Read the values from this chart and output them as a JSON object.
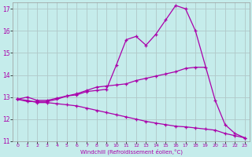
{
  "xlabel": "Windchill (Refroidissement éolien,°C)",
  "bg_color": "#c5eceb",
  "line_color": "#aa00aa",
  "grid_color": "#b0c8c8",
  "ylim": [
    11,
    17.3
  ],
  "xlim": [
    -0.5,
    23.5
  ],
  "yticks": [
    11,
    12,
    13,
    14,
    15,
    16,
    17
  ],
  "xticks": [
    0,
    1,
    2,
    3,
    4,
    5,
    6,
    7,
    8,
    9,
    10,
    11,
    12,
    13,
    14,
    15,
    16,
    17,
    18,
    19,
    20,
    21,
    22,
    23
  ],
  "line_upper_x": [
    0,
    1,
    2,
    3,
    4,
    5,
    6,
    7,
    8,
    9,
    10,
    11,
    12,
    13,
    14,
    15,
    16,
    17,
    18,
    20,
    21,
    22,
    23
  ],
  "line_upper_y": [
    12.9,
    12.8,
    12.8,
    12.8,
    12.9,
    13.05,
    13.1,
    13.25,
    13.3,
    13.35,
    14.45,
    15.6,
    15.75,
    15.35,
    15.85,
    16.5,
    17.15,
    17.0,
    16.0,
    12.85,
    11.75,
    11.35,
    11.15
  ],
  "line_mid_x": [
    0,
    1,
    2,
    3,
    4,
    5,
    6,
    7,
    8,
    9,
    10,
    11,
    12,
    13,
    14,
    15,
    16,
    17,
    18,
    19
  ],
  "line_mid_y": [
    12.9,
    13.0,
    12.85,
    12.85,
    12.95,
    13.05,
    13.15,
    13.3,
    13.45,
    13.5,
    13.55,
    13.6,
    13.75,
    13.85,
    13.95,
    14.05,
    14.15,
    14.3,
    14.35,
    14.35
  ],
  "line_lower_x": [
    0,
    1,
    2,
    3,
    4,
    5,
    6,
    7,
    8,
    9,
    10,
    11,
    12,
    13,
    14,
    15,
    16,
    17,
    18,
    19,
    20,
    21,
    22,
    23
  ],
  "line_lower_y": [
    12.9,
    12.85,
    12.75,
    12.75,
    12.7,
    12.65,
    12.6,
    12.5,
    12.4,
    12.3,
    12.2,
    12.1,
    12.0,
    11.9,
    11.82,
    11.75,
    11.68,
    11.65,
    11.6,
    11.55,
    11.5,
    11.35,
    11.25,
    11.15
  ]
}
